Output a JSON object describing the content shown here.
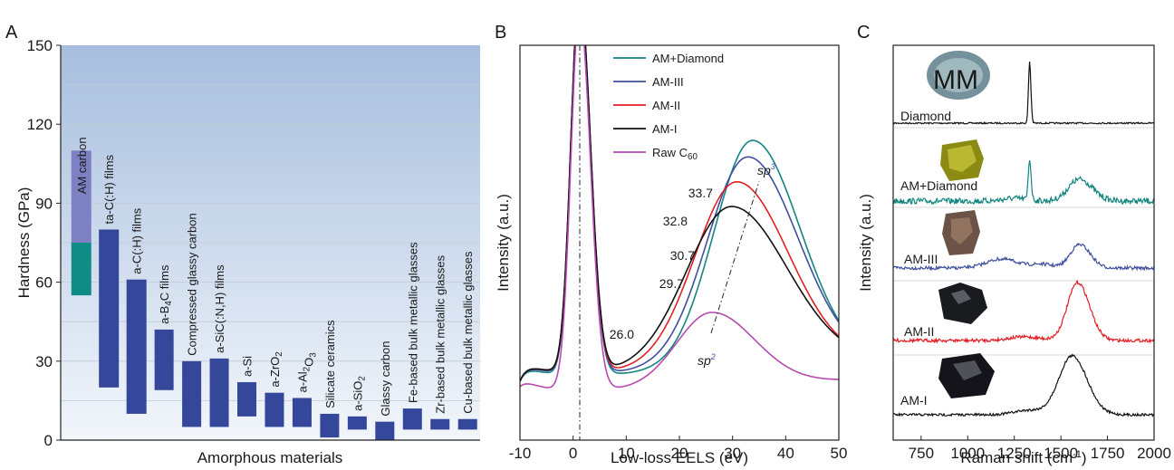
{
  "chart_data": [
    {
      "panel": "A",
      "type": "bar",
      "ylabel": "Hardness (GPa)",
      "xlabel": "Amorphous materials",
      "ylim": [
        0,
        150
      ],
      "yticks": [
        0,
        30,
        60,
        90,
        120,
        150
      ],
      "bars": [
        {
          "label": "AM carbon",
          "low": 55,
          "high": 110,
          "split": 75
        },
        {
          "label": "ta-C(:H) films",
          "low": 20,
          "high": 80
        },
        {
          "label": "a-C(:H) films",
          "low": 10,
          "high": 61
        },
        {
          "label": "a-B4C films",
          "low": 19,
          "high": 42
        },
        {
          "label": "Compressed glassy carbon",
          "low": 5,
          "high": 30
        },
        {
          "label": "a-SiC(:N,H) films",
          "low": 5,
          "high": 31
        },
        {
          "label": "a-Si",
          "low": 9,
          "high": 22
        },
        {
          "label": "a-ZrO2",
          "low": 5,
          "high": 18
        },
        {
          "label": "a-Al2O3",
          "low": 5,
          "high": 16
        },
        {
          "label": "Silicate ceramics",
          "low": 1,
          "high": 10
        },
        {
          "label": "a-SiO2",
          "low": 4,
          "high": 9
        },
        {
          "label": "Glassy carbon",
          "low": 0,
          "high": 7
        },
        {
          "label": "Fe-based bulk metallic glasses",
          "low": 4,
          "high": 12
        },
        {
          "label": "Zr-based bulk metallic glasses",
          "low": 4,
          "high": 8
        },
        {
          "label": "Cu-based bulk metallic glasses",
          "low": 4,
          "high": 8
        }
      ],
      "colors": {
        "bar": "#34479a",
        "am_top": "#7d80c2",
        "am_bottom": "#0f8c86",
        "bg_top": "#a7bede",
        "bg_bottom": "#f2f6fb"
      }
    },
    {
      "panel": "B",
      "type": "line",
      "xlabel": "Low-loss EELS (eV)",
      "ylabel": "Intensity (a.u.)",
      "xlim": [
        -10,
        50
      ],
      "xticks": [
        -10,
        0,
        10,
        20,
        30,
        40,
        50
      ],
      "series": [
        {
          "name": "AM+Diamond",
          "color": "#12857f",
          "peak": 33.7
        },
        {
          "name": "AM-III",
          "color": "#3f4f9e",
          "peak": 32.8
        },
        {
          "name": "AM-II",
          "color": "#e31e24",
          "peak": 30.7
        },
        {
          "name": "AM-I",
          "color": "#111111",
          "peak": 29.7
        },
        {
          "name": "Raw C60",
          "color": "#b64ab0",
          "peak": 26.0
        }
      ],
      "annotations": [
        "33.7",
        "32.8",
        "30.7",
        "29.7",
        "26.0",
        "sp3",
        "sp2"
      ]
    },
    {
      "panel": "C",
      "type": "line",
      "xlabel": "Raman shift (cm-1)",
      "ylabel": "Intensity (a.u.)",
      "xlim": [
        600,
        2000
      ],
      "xticks": [
        750,
        1000,
        1250,
        1500,
        1750,
        2000
      ],
      "series": [
        {
          "name": "Diamond",
          "color": "#111111"
        },
        {
          "name": "AM+Diamond",
          "color": "#12857f"
        },
        {
          "name": "AM-III",
          "color": "#3f4f9e"
        },
        {
          "name": "AM-II",
          "color": "#e31e24"
        },
        {
          "name": "AM-I",
          "color": "#111111"
        }
      ]
    }
  ],
  "panel_labels": [
    "A",
    "B",
    "C"
  ]
}
